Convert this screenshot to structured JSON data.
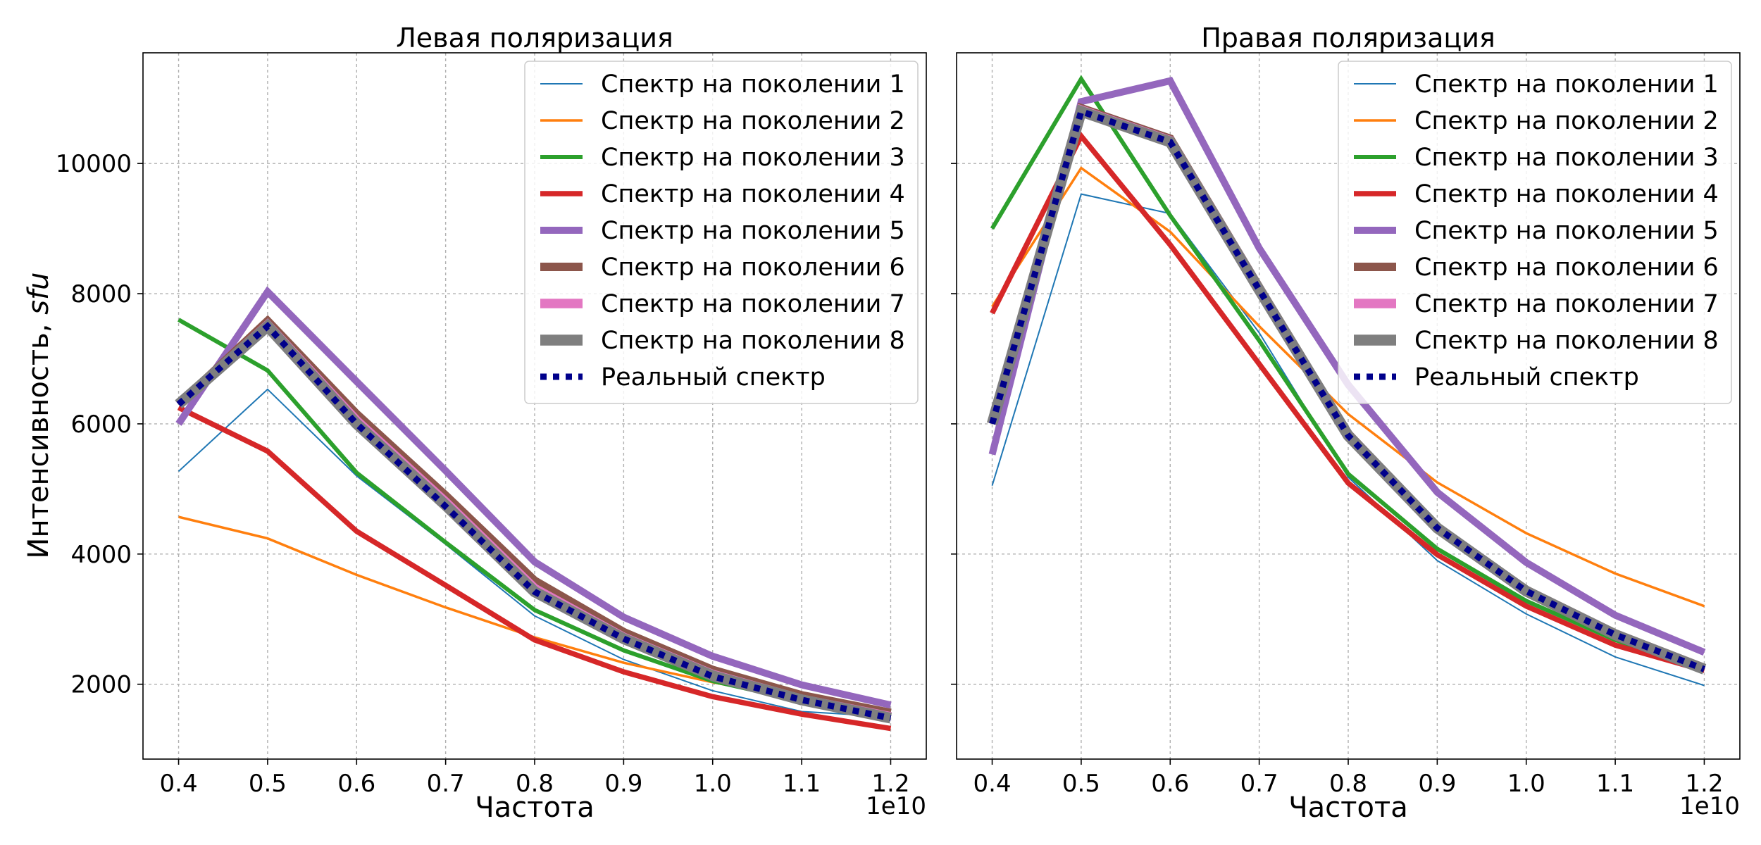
{
  "chart_data": [
    {
      "type": "line",
      "title": "Левая поляризация",
      "xlabel": "Частота",
      "ylabel": "Интенсивность, ",
      "ylabel_unit": "sfu",
      "x_offset_label": "1e10",
      "xlim": [
        0.36,
        1.24
      ],
      "ylim": [
        850,
        11700
      ],
      "x": [
        0.4,
        0.5,
        0.6,
        0.7,
        0.8,
        0.9,
        1.0,
        1.1,
        1.2
      ],
      "x_tick_labels": [
        "0.4",
        "0.5",
        "0.6",
        "0.7",
        "0.8",
        "0.9",
        "1.0",
        "1.1",
        "1.2"
      ],
      "y_ticks": [
        2000,
        4000,
        6000,
        8000,
        10000
      ],
      "y_tick_labels": [
        "2000",
        "4000",
        "6000",
        "8000",
        "10000"
      ],
      "grid": true,
      "legend_position": "top-right",
      "series": [
        {
          "name": "Спектр на поколении 1",
          "color": "#1f77b4",
          "style": "solid",
          "values": [
            5270,
            6530,
            5200,
            4150,
            3050,
            2380,
            1900,
            1580,
            1500
          ]
        },
        {
          "name": "Спектр на поколении 2",
          "color": "#ff7f0e",
          "style": "solid",
          "values": [
            4570,
            4240,
            3680,
            3180,
            2720,
            2330,
            2030,
            1770,
            1600
          ]
        },
        {
          "name": "Спектр на поколении 3",
          "color": "#2ca02c",
          "style": "solid",
          "values": [
            7600,
            6820,
            5250,
            4180,
            3140,
            2520,
            2050,
            1740,
            1530
          ]
        },
        {
          "name": "Спектр на поколении 4",
          "color": "#d62728",
          "style": "solid",
          "values": [
            6250,
            5580,
            4350,
            3520,
            2680,
            2190,
            1810,
            1540,
            1320
          ]
        },
        {
          "name": "Спектр на поколении 5",
          "color": "#9467bd",
          "style": "solid",
          "values": [
            6000,
            8030,
            6650,
            5280,
            3880,
            3030,
            2430,
            1990,
            1680
          ]
        },
        {
          "name": "Спектр на поколении 6",
          "color": "#8c564b",
          "style": "solid",
          "values": [
            6300,
            7580,
            6150,
            4900,
            3590,
            2800,
            2220,
            1830,
            1560
          ]
        },
        {
          "name": "Спектр на поколении 7",
          "color": "#e377c2",
          "style": "solid",
          "values": [
            6300,
            7520,
            6050,
            4800,
            3470,
            2720,
            2150,
            1770,
            1500
          ]
        },
        {
          "name": "Спектр на поколении 8",
          "color": "#7f7f7f",
          "style": "solid",
          "values": [
            6300,
            7500,
            6000,
            4750,
            3420,
            2700,
            2130,
            1760,
            1480
          ]
        },
        {
          "name": "Реальный спектр",
          "color": "#00008b",
          "style": "dotted",
          "values": [
            6300,
            7500,
            6000,
            4730,
            3420,
            2700,
            2120,
            1760,
            1480
          ]
        }
      ]
    },
    {
      "type": "line",
      "title": "Правая поляризация",
      "xlabel": "Частота",
      "x_offset_label": "1e10",
      "xlim": [
        0.36,
        1.24
      ],
      "ylim": [
        850,
        11700
      ],
      "x": [
        0.4,
        0.5,
        0.6,
        0.7,
        0.8,
        0.9,
        1.0,
        1.1,
        1.2
      ],
      "x_tick_labels": [
        "0.4",
        "0.5",
        "0.6",
        "0.7",
        "0.8",
        "0.9",
        "1.0",
        "1.1",
        "1.2"
      ],
      "y_ticks": [
        2000,
        4000,
        6000,
        8000,
        10000
      ],
      "grid": true,
      "legend_position": "top-right",
      "series": [
        {
          "name": "Спектр на поколении 1",
          "color": "#1f77b4",
          "style": "solid",
          "values": [
            5050,
            9530,
            9230,
            7400,
            5180,
            3900,
            3080,
            2420,
            1980
          ]
        },
        {
          "name": "Спектр на поколении 2",
          "color": "#ff7f0e",
          "style": "solid",
          "values": [
            7800,
            9930,
            8950,
            7500,
            6150,
            5100,
            4320,
            3700,
            3200
          ]
        },
        {
          "name": "Спектр на поколении 3",
          "color": "#2ca02c",
          "style": "solid",
          "values": [
            9000,
            11300,
            9200,
            7280,
            5230,
            4080,
            3280,
            2680,
            2220
          ]
        },
        {
          "name": "Спектр на поколении 4",
          "color": "#d62728",
          "style": "solid",
          "values": [
            7700,
            10420,
            8750,
            6920,
            5090,
            3990,
            3200,
            2600,
            2210
          ]
        },
        {
          "name": "Спектр на поколении 5",
          "color": "#9467bd",
          "style": "solid",
          "values": [
            5530,
            10950,
            11270,
            8700,
            6600,
            4950,
            3870,
            3060,
            2490
          ]
        },
        {
          "name": "Спектр на поколении 6",
          "color": "#8c564b",
          "style": "solid",
          "values": [
            6000,
            10850,
            10380,
            8100,
            5850,
            4420,
            3450,
            2780,
            2250
          ]
        },
        {
          "name": "Спектр на поколении 7",
          "color": "#e377c2",
          "style": "solid",
          "values": [
            6000,
            10820,
            10350,
            8080,
            5830,
            4410,
            3440,
            2770,
            2240
          ]
        },
        {
          "name": "Спектр на поколении 8",
          "color": "#7f7f7f",
          "style": "solid",
          "values": [
            6000,
            10800,
            10330,
            8060,
            5820,
            4400,
            3430,
            2760,
            2230
          ]
        },
        {
          "name": "Реальный спектр",
          "color": "#00008b",
          "style": "dotted",
          "values": [
            6000,
            10800,
            10330,
            8060,
            5820,
            4400,
            3430,
            2760,
            2230
          ]
        }
      ]
    }
  ]
}
